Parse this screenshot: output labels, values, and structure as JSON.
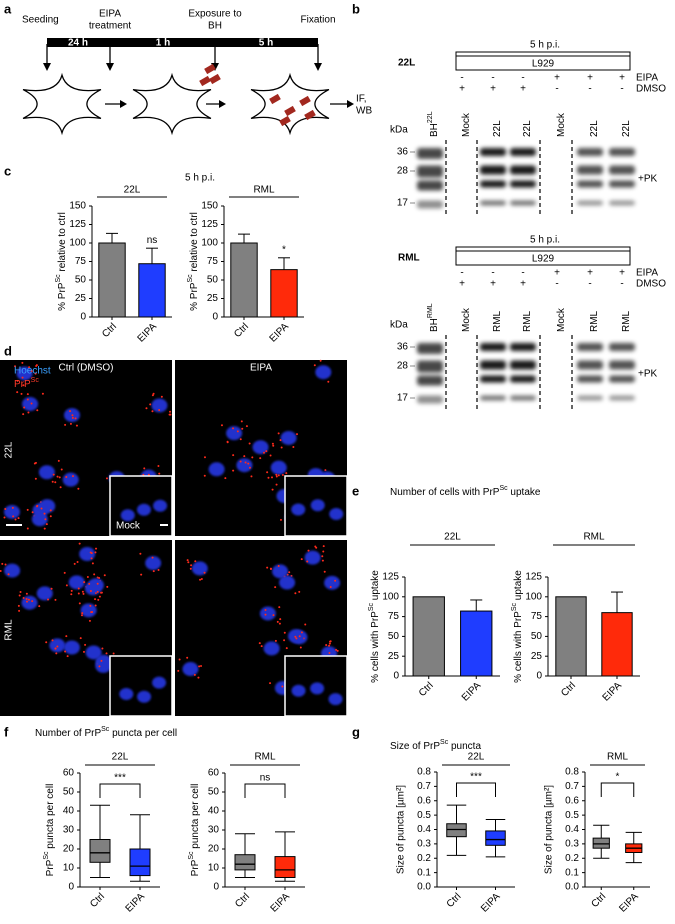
{
  "panel_labels": [
    "a",
    "b",
    "c",
    "d",
    "e",
    "f",
    "g"
  ],
  "timeline": {
    "steps": [
      [
        "Seeding"
      ],
      [
        "EIPA",
        "treatment"
      ],
      [
        "Exposure to",
        "BH"
      ],
      [
        "Fixation"
      ]
    ],
    "durations": [
      "24 h",
      "1 h",
      "5 h"
    ],
    "end": [
      "IF,",
      "WB"
    ]
  },
  "blots": [
    {
      "label": "22L",
      "header": "5 h p.i.",
      "cell_line": "L929",
      "rows": [
        {
          "name": "EIPA",
          "signs": [
            "-",
            "-",
            "-",
            "+",
            "+",
            "+"
          ]
        },
        {
          "name": "DMSO",
          "signs": [
            "+",
            "+",
            "+",
            "-",
            "-",
            "-"
          ]
        }
      ],
      "lanes": [
        {
          "pre": "BH",
          "sup": "22L"
        },
        {
          "pre": "Mock"
        },
        {
          "pre": "22L"
        },
        {
          "pre": "22L"
        },
        {
          "pre": "Mock"
        },
        {
          "pre": "22L"
        },
        {
          "pre": "22L"
        }
      ],
      "unit": "kDa",
      "markers": [
        36,
        28,
        17
      ],
      "treatment": "+PK"
    },
    {
      "label": "RML",
      "header": "5 h p.i.",
      "cell_line": "L929",
      "rows": [
        {
          "name": "EIPA",
          "signs": [
            "-",
            "-",
            "-",
            "+",
            "+",
            "+"
          ]
        },
        {
          "name": "DMSO",
          "signs": [
            "+",
            "+",
            "+",
            "-",
            "-",
            "-"
          ]
        }
      ],
      "lanes": [
        {
          "pre": "BH",
          "sup": "RML"
        },
        {
          "pre": "Mock"
        },
        {
          "pre": "RML"
        },
        {
          "pre": "RML"
        },
        {
          "pre": "Mock"
        },
        {
          "pre": "RML"
        },
        {
          "pre": "RML"
        }
      ],
      "unit": "kDa",
      "markers": [
        36,
        28,
        17
      ],
      "treatment": "+PK"
    }
  ],
  "microscopy": {
    "columns": [
      "Ctrl (DMSO)",
      "EIPA"
    ],
    "rows": [
      "22L",
      "RML"
    ],
    "channels": [
      "Hoechst",
      {
        "pre": "PrP",
        "sup": "Sc"
      }
    ],
    "inset": "Mock"
  },
  "panel_titles": {
    "c": "5 h p.i.",
    "e": {
      "pre": "Number of cells with PrP",
      "sup": "Sc",
      "post": " uptake"
    },
    "f": {
      "pre": "Number of PrP",
      "sup": "Sc",
      "post": " puncta per cell"
    },
    "g": {
      "pre": "Size of PrP",
      "sup": "Sc",
      "post": " puncta"
    }
  },
  "chart_data": [
    {
      "type": "bar",
      "title": "22L",
      "ylabel": {
        "pre": "% PrP",
        "sup": "Sc",
        "post": " relative to ctrl"
      },
      "categories": [
        "Ctrl",
        "EIPA"
      ],
      "values": [
        100,
        72
      ],
      "errors": [
        13,
        21
      ],
      "colors": [
        "#808080",
        "#1f3dff"
      ],
      "ylim": [
        0,
        150
      ],
      "yticks": [
        0,
        25,
        50,
        75,
        100,
        125,
        150
      ],
      "annotation": "ns"
    },
    {
      "type": "bar",
      "title": "RML",
      "ylabel": {
        "pre": "% PrP",
        "sup": "Sc",
        "post": " relative to ctrl"
      },
      "categories": [
        "Ctrl",
        "EIPA"
      ],
      "values": [
        100,
        64
      ],
      "errors": [
        12,
        16
      ],
      "colors": [
        "#808080",
        "#ff2a0a"
      ],
      "ylim": [
        0,
        150
      ],
      "yticks": [
        0,
        25,
        50,
        75,
        100,
        125,
        150
      ],
      "annotation": "*"
    },
    {
      "type": "bar",
      "title": "22L",
      "ylabel": {
        "pre": "% cells with PrP",
        "sup": "Sc",
        "post": " uptake"
      },
      "categories": [
        "Ctrl",
        "EIPA"
      ],
      "values": [
        100,
        82
      ],
      "errors": [
        0,
        14
      ],
      "colors": [
        "#808080",
        "#1f3dff"
      ],
      "ylim": [
        0,
        125
      ],
      "yticks": [
        0,
        25,
        50,
        75,
        100,
        125
      ]
    },
    {
      "type": "bar",
      "title": "RML",
      "ylabel": {
        "pre": "% cells with  PrP",
        "sup": "Sc",
        "post": " uptake"
      },
      "categories": [
        "Ctrl",
        "EIPA"
      ],
      "values": [
        100,
        80
      ],
      "errors": [
        0,
        26
      ],
      "colors": [
        "#808080",
        "#ff2a0a"
      ],
      "ylim": [
        0,
        125
      ],
      "yticks": [
        0,
        25,
        50,
        75,
        100,
        125
      ]
    },
    {
      "type": "box",
      "title": "22L",
      "ylabel": {
        "pre": "PrP",
        "sup": "Sc",
        "post": " puncta per cell"
      },
      "categories": [
        "Ctrl",
        "EIPA"
      ],
      "boxes": [
        {
          "whislo": 5,
          "q1": 13,
          "med": 18,
          "q3": 25,
          "whishi": 43
        },
        {
          "whislo": 3,
          "q1": 6,
          "med": 11,
          "q3": 20,
          "whishi": 38
        }
      ],
      "colors": [
        "#808080",
        "#1f3dff"
      ],
      "ylim": [
        0,
        60
      ],
      "yticks": [
        0,
        10,
        20,
        30,
        40,
        50,
        60
      ],
      "annotation": "***"
    },
    {
      "type": "box",
      "title": "RML",
      "ylabel": {
        "pre": "PrP",
        "sup": "Sc",
        "post": " puncta per cell"
      },
      "categories": [
        "Ctrl",
        "EIPA"
      ],
      "boxes": [
        {
          "whislo": 5,
          "q1": 9,
          "med": 12,
          "q3": 17,
          "whishi": 28
        },
        {
          "whislo": 3,
          "q1": 5,
          "med": 9,
          "q3": 16,
          "whishi": 29
        }
      ],
      "colors": [
        "#808080",
        "#ff2a0a"
      ],
      "ylim": [
        0,
        60
      ],
      "yticks": [
        0,
        10,
        20,
        30,
        40,
        50,
        60
      ],
      "annotation": "ns"
    },
    {
      "type": "box",
      "title": "22L",
      "ylabel": "Size of puncta [µm²]",
      "categories": [
        "Ctrl",
        "EIPA"
      ],
      "boxes": [
        {
          "whislo": 0.22,
          "q1": 0.35,
          "med": 0.4,
          "q3": 0.44,
          "whishi": 0.57
        },
        {
          "whislo": 0.21,
          "q1": 0.29,
          "med": 0.33,
          "q3": 0.39,
          "whishi": 0.47
        }
      ],
      "colors": [
        "#808080",
        "#1f3dff"
      ],
      "ylim": [
        0,
        0.8
      ],
      "yticks": [
        {
          "value": 0,
          "label": "0.0"
        },
        0.1,
        0.2,
        0.3,
        0.4,
        0.5,
        0.6,
        0.7,
        0.8
      ],
      "annotation": "***"
    },
    {
      "type": "box",
      "title": "RML",
      "ylabel": "Size of puncta [µm²]",
      "categories": [
        "Ctrl",
        "EIPA"
      ],
      "boxes": [
        {
          "whislo": 0.2,
          "q1": 0.27,
          "med": 0.3,
          "q3": 0.34,
          "whishi": 0.43
        },
        {
          "whislo": 0.17,
          "q1": 0.24,
          "med": 0.27,
          "q3": 0.3,
          "whishi": 0.38
        }
      ],
      "colors": [
        "#808080",
        "#ff2a0a"
      ],
      "ylim": [
        0,
        0.8
      ],
      "yticks": [
        {
          "value": 0,
          "label": "0.0"
        },
        0.1,
        0.2,
        0.3,
        0.4,
        0.5,
        0.6,
        0.7,
        0.8
      ],
      "annotation": "*"
    }
  ]
}
